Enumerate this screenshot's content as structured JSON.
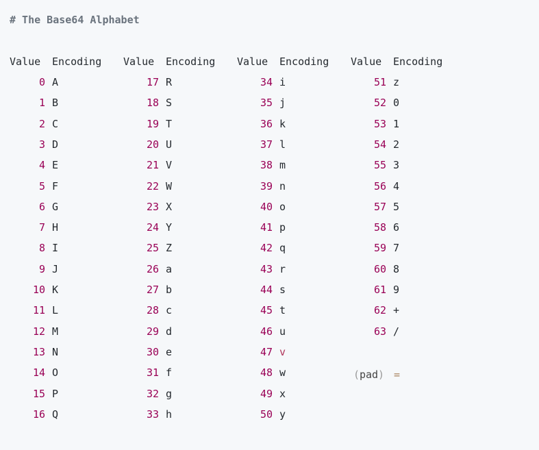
{
  "comment": "# The Base64 Alphabet",
  "headers": [
    "Value",
    "Encoding",
    "Value",
    "Encoding",
    "Value",
    "Encoding",
    "Value",
    "Encoding"
  ],
  "columns": [
    [
      {
        "value": "0",
        "enc": "A"
      },
      {
        "value": "1",
        "enc": "B"
      },
      {
        "value": "2",
        "enc": "C"
      },
      {
        "value": "3",
        "enc": "D"
      },
      {
        "value": "4",
        "enc": "E"
      },
      {
        "value": "5",
        "enc": "F"
      },
      {
        "value": "6",
        "enc": "G"
      },
      {
        "value": "7",
        "enc": "H"
      },
      {
        "value": "8",
        "enc": "I"
      },
      {
        "value": "9",
        "enc": "J"
      },
      {
        "value": "10",
        "enc": "K"
      },
      {
        "value": "11",
        "enc": "L"
      },
      {
        "value": "12",
        "enc": "M"
      },
      {
        "value": "13",
        "enc": "N"
      },
      {
        "value": "14",
        "enc": "O"
      },
      {
        "value": "15",
        "enc": "P"
      },
      {
        "value": "16",
        "enc": "Q"
      }
    ],
    [
      {
        "value": "17",
        "enc": "R"
      },
      {
        "value": "18",
        "enc": "S"
      },
      {
        "value": "19",
        "enc": "T"
      },
      {
        "value": "20",
        "enc": "U"
      },
      {
        "value": "21",
        "enc": "V"
      },
      {
        "value": "22",
        "enc": "W"
      },
      {
        "value": "23",
        "enc": "X"
      },
      {
        "value": "24",
        "enc": "Y"
      },
      {
        "value": "25",
        "enc": "Z"
      },
      {
        "value": "26",
        "enc": "a"
      },
      {
        "value": "27",
        "enc": "b"
      },
      {
        "value": "28",
        "enc": "c"
      },
      {
        "value": "29",
        "enc": "d"
      },
      {
        "value": "30",
        "enc": "e"
      },
      {
        "value": "31",
        "enc": "f"
      },
      {
        "value": "32",
        "enc": "g"
      },
      {
        "value": "33",
        "enc": "h"
      }
    ],
    [
      {
        "value": "34",
        "enc": "i"
      },
      {
        "value": "35",
        "enc": "j"
      },
      {
        "value": "36",
        "enc": "k"
      },
      {
        "value": "37",
        "enc": "l"
      },
      {
        "value": "38",
        "enc": "m"
      },
      {
        "value": "39",
        "enc": "n"
      },
      {
        "value": "40",
        "enc": "o"
      },
      {
        "value": "41",
        "enc": "p"
      },
      {
        "value": "42",
        "enc": "q"
      },
      {
        "value": "43",
        "enc": "r"
      },
      {
        "value": "44",
        "enc": "s"
      },
      {
        "value": "45",
        "enc": "t"
      },
      {
        "value": "46",
        "enc": "u"
      },
      {
        "value": "47",
        "enc": "v",
        "special": true
      },
      {
        "value": "48",
        "enc": "w"
      },
      {
        "value": "49",
        "enc": "x"
      },
      {
        "value": "50",
        "enc": "y"
      }
    ],
    [
      {
        "value": "51",
        "enc": "z"
      },
      {
        "value": "52",
        "enc": "0"
      },
      {
        "value": "53",
        "enc": "1"
      },
      {
        "value": "54",
        "enc": "2"
      },
      {
        "value": "55",
        "enc": "3"
      },
      {
        "value": "56",
        "enc": "4"
      },
      {
        "value": "57",
        "enc": "5"
      },
      {
        "value": "58",
        "enc": "6"
      },
      {
        "value": "59",
        "enc": "7"
      },
      {
        "value": "60",
        "enc": "8"
      },
      {
        "value": "61",
        "enc": "9"
      },
      {
        "value": "62",
        "enc": "+"
      },
      {
        "value": "63",
        "enc": "/"
      }
    ]
  ],
  "pad": {
    "open": "(",
    "label": "pad",
    "close": ")",
    "enc": "="
  }
}
